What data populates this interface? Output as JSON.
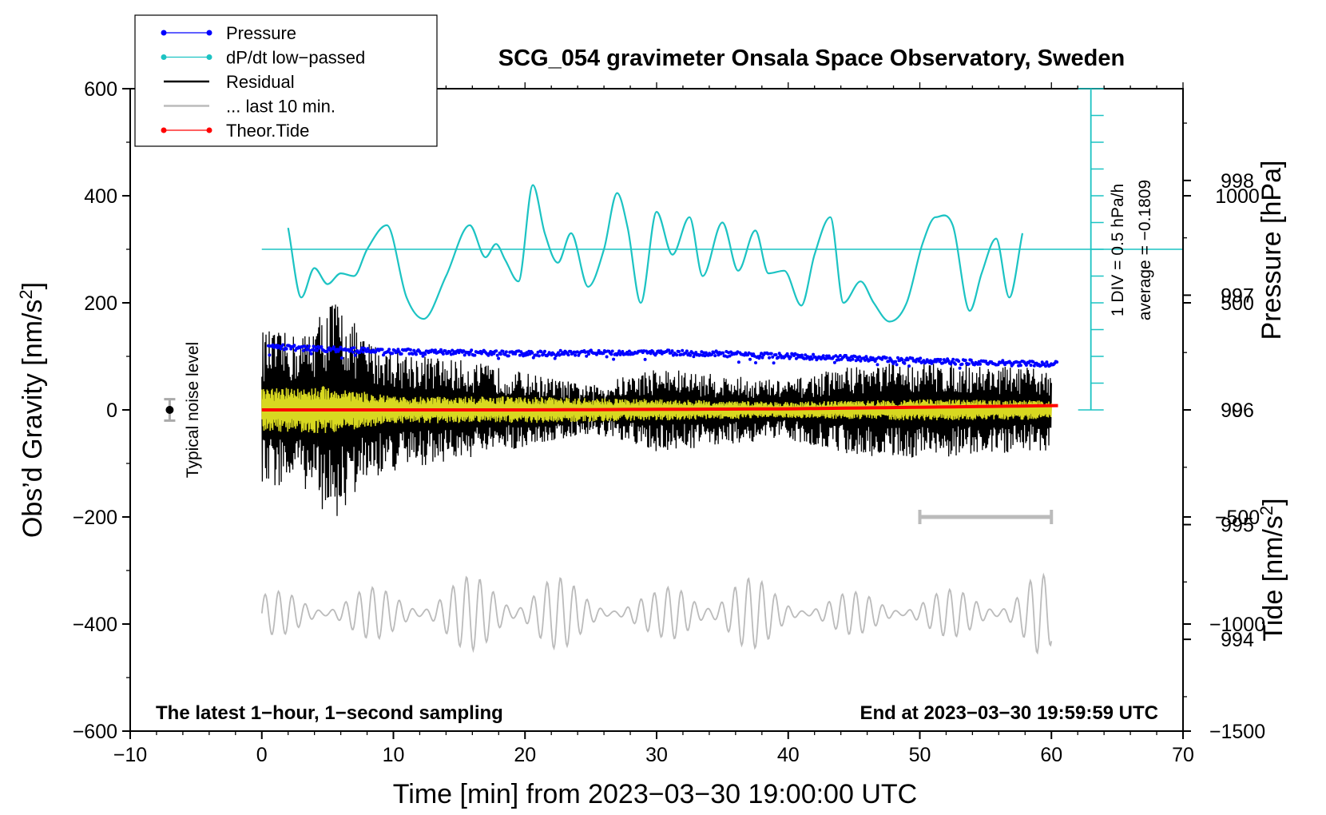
{
  "chart_data": {
    "type": "line",
    "title": "SCG_054 gravimeter Onsala Space Observatory, Sweden",
    "xlabel": "Time [min] from 2023−03−30 19:00:00 UTC",
    "ylabel_left": "Obs’d Gravity [nm/s",
    "ylabel_left_sup": "2",
    "ylabel_left_end": "]",
    "ylabel_right_top": "Pressure [hPa]",
    "ylabel_right_bottom": "Tide [nm/s",
    "ylabel_right_bottom_sup": "2",
    "ylabel_right_bottom_end": "]",
    "xlim": [
      -10,
      70
    ],
    "ylim_gravity": [
      -600,
      600
    ],
    "ylim_pressure_display": [
      993.2,
      998.8
    ],
    "ylim_tide": [
      -1500,
      1500
    ],
    "x_ticks": [
      -10,
      0,
      10,
      20,
      30,
      40,
      50,
      60,
      70
    ],
    "x_tick_labels": [
      "−10",
      "0",
      "10",
      "20",
      "30",
      "40",
      "50",
      "60",
      "70"
    ],
    "gravity_ticks": [
      -600,
      -400,
      -200,
      0,
      200,
      400,
      600
    ],
    "gravity_tick_labels": [
      "−600",
      "−400",
      "−200",
      "0",
      "200",
      "400",
      "600"
    ],
    "pressure_ticks": [
      994,
      995,
      996,
      997,
      998
    ],
    "pressure_tick_labels": [
      "994",
      "995",
      "996",
      "997",
      "998"
    ],
    "tide_ticks": [
      -1500,
      -1000,
      -500,
      0,
      500,
      1000
    ],
    "tide_tick_labels": [
      "−1500",
      "−1000",
      "−500",
      "0",
      "500",
      "1000"
    ],
    "legend": {
      "position": "top-left",
      "entries": [
        {
          "label": "Pressure",
          "color": "#0000ff",
          "marker": "dot"
        },
        {
          "label": "dP/dt low−passed",
          "color": "#1cc3c3",
          "marker": "dot"
        },
        {
          "label": "Residual",
          "color": "#000000",
          "marker": "none"
        },
        {
          "label": "... last 10 min.",
          "color": "#bbbbbb",
          "marker": "none"
        },
        {
          "label": "Theor.Tide",
          "color": "#ff0000",
          "marker": "dot"
        }
      ]
    },
    "annotations": {
      "bottom_left": "The latest 1−hour, 1−second sampling",
      "bottom_right": "End at 2023−03−30 19:59:59 UTC",
      "noise_label": "Typical noise level",
      "dpdt_scale": "1 DIV = 0.5 hPa/h",
      "dpdt_average": "average = −0.1809"
    },
    "noise_level": {
      "x": -7,
      "center": 0,
      "halfwidth": 20
    },
    "last10_bar": {
      "x_start": 50,
      "x_end": 60,
      "gravity": -200
    },
    "dpdt_axis": {
      "x": 63,
      "gravity_bottom": 0,
      "gravity_top": 600,
      "divisions": 12
    },
    "series": [
      {
        "name": "Pressure",
        "color": "#0000ff",
        "unit": "hPa",
        "x": [
          0.5,
          5,
          10,
          15,
          20,
          25,
          30,
          35,
          40,
          45,
          50,
          55,
          60.5
        ],
        "values": [
          996.55,
          996.53,
          996.51,
          996.5,
          996.49,
          996.5,
          996.5,
          996.49,
          996.47,
          996.45,
          996.43,
          996.41,
          996.4
        ]
      },
      {
        "name": "dP/dt low-passed",
        "color": "#1cc3c3",
        "unit": "gravity axis (display)",
        "baseline": 300,
        "x": [
          2,
          3,
          4,
          5,
          6,
          7,
          8,
          9.5,
          11,
          12.3,
          14,
          15.8,
          17,
          17.8,
          18.5,
          19.5,
          20.6,
          21.5,
          22.5,
          23.5,
          24.8,
          26,
          27,
          27.8,
          28.8,
          30,
          31.2,
          32.5,
          33.5,
          35,
          36.2,
          37.5,
          38.5,
          39.7,
          41,
          42,
          43.2,
          44.2,
          45.5,
          46.5,
          47.7,
          49,
          50.2,
          51.2,
          52.5,
          53.8,
          54.7,
          55.8,
          56.8,
          57.8
        ],
        "values": [
          340,
          210,
          265,
          235,
          255,
          250,
          300,
          345,
          210,
          170,
          250,
          345,
          285,
          310,
          280,
          240,
          420,
          330,
          275,
          330,
          230,
          300,
          405,
          340,
          200,
          370,
          290,
          360,
          250,
          350,
          260,
          335,
          255,
          260,
          195,
          290,
          360,
          200,
          240,
          200,
          165,
          200,
          310,
          360,
          345,
          185,
          255,
          320,
          210,
          330
        ]
      },
      {
        "name": "Residual",
        "color": "#000000",
        "unit": "nm/s2",
        "envelope_x": [
          0,
          3,
          5.5,
          8,
          12,
          16,
          20,
          25,
          30,
          35,
          40,
          45,
          50,
          55,
          60
        ],
        "envelope_amplitude": [
          150,
          140,
          215,
          130,
          105,
          90,
          70,
          45,
          80,
          65,
          55,
          85,
          90,
          85,
          75
        ]
      },
      {
        "name": "Residual filtered",
        "color": "#d8d820",
        "unit": "nm/s2",
        "envelope_x": [
          0,
          5,
          10,
          20,
          30,
          40,
          50,
          60
        ],
        "envelope_amplitude": [
          40,
          45,
          25,
          25,
          20,
          15,
          20,
          18
        ]
      },
      {
        "name": "... last 10 min.",
        "color": "#bbbbbb",
        "unit": "gravity axis (display)",
        "center": -380,
        "x": [
          0,
          10,
          19,
          20,
          25,
          30,
          34,
          36,
          40,
          45,
          50,
          55,
          59,
          60
        ],
        "amplitude": [
          40,
          50,
          80,
          100,
          40,
          40,
          90,
          80,
          40,
          40,
          40,
          50,
          80,
          60
        ]
      },
      {
        "name": "Theor.Tide",
        "color": "#ff0000",
        "unit": "nm/s2",
        "x": [
          0,
          20,
          40,
          60.5
        ],
        "values": [
          0,
          0,
          5,
          20
        ]
      }
    ]
  }
}
